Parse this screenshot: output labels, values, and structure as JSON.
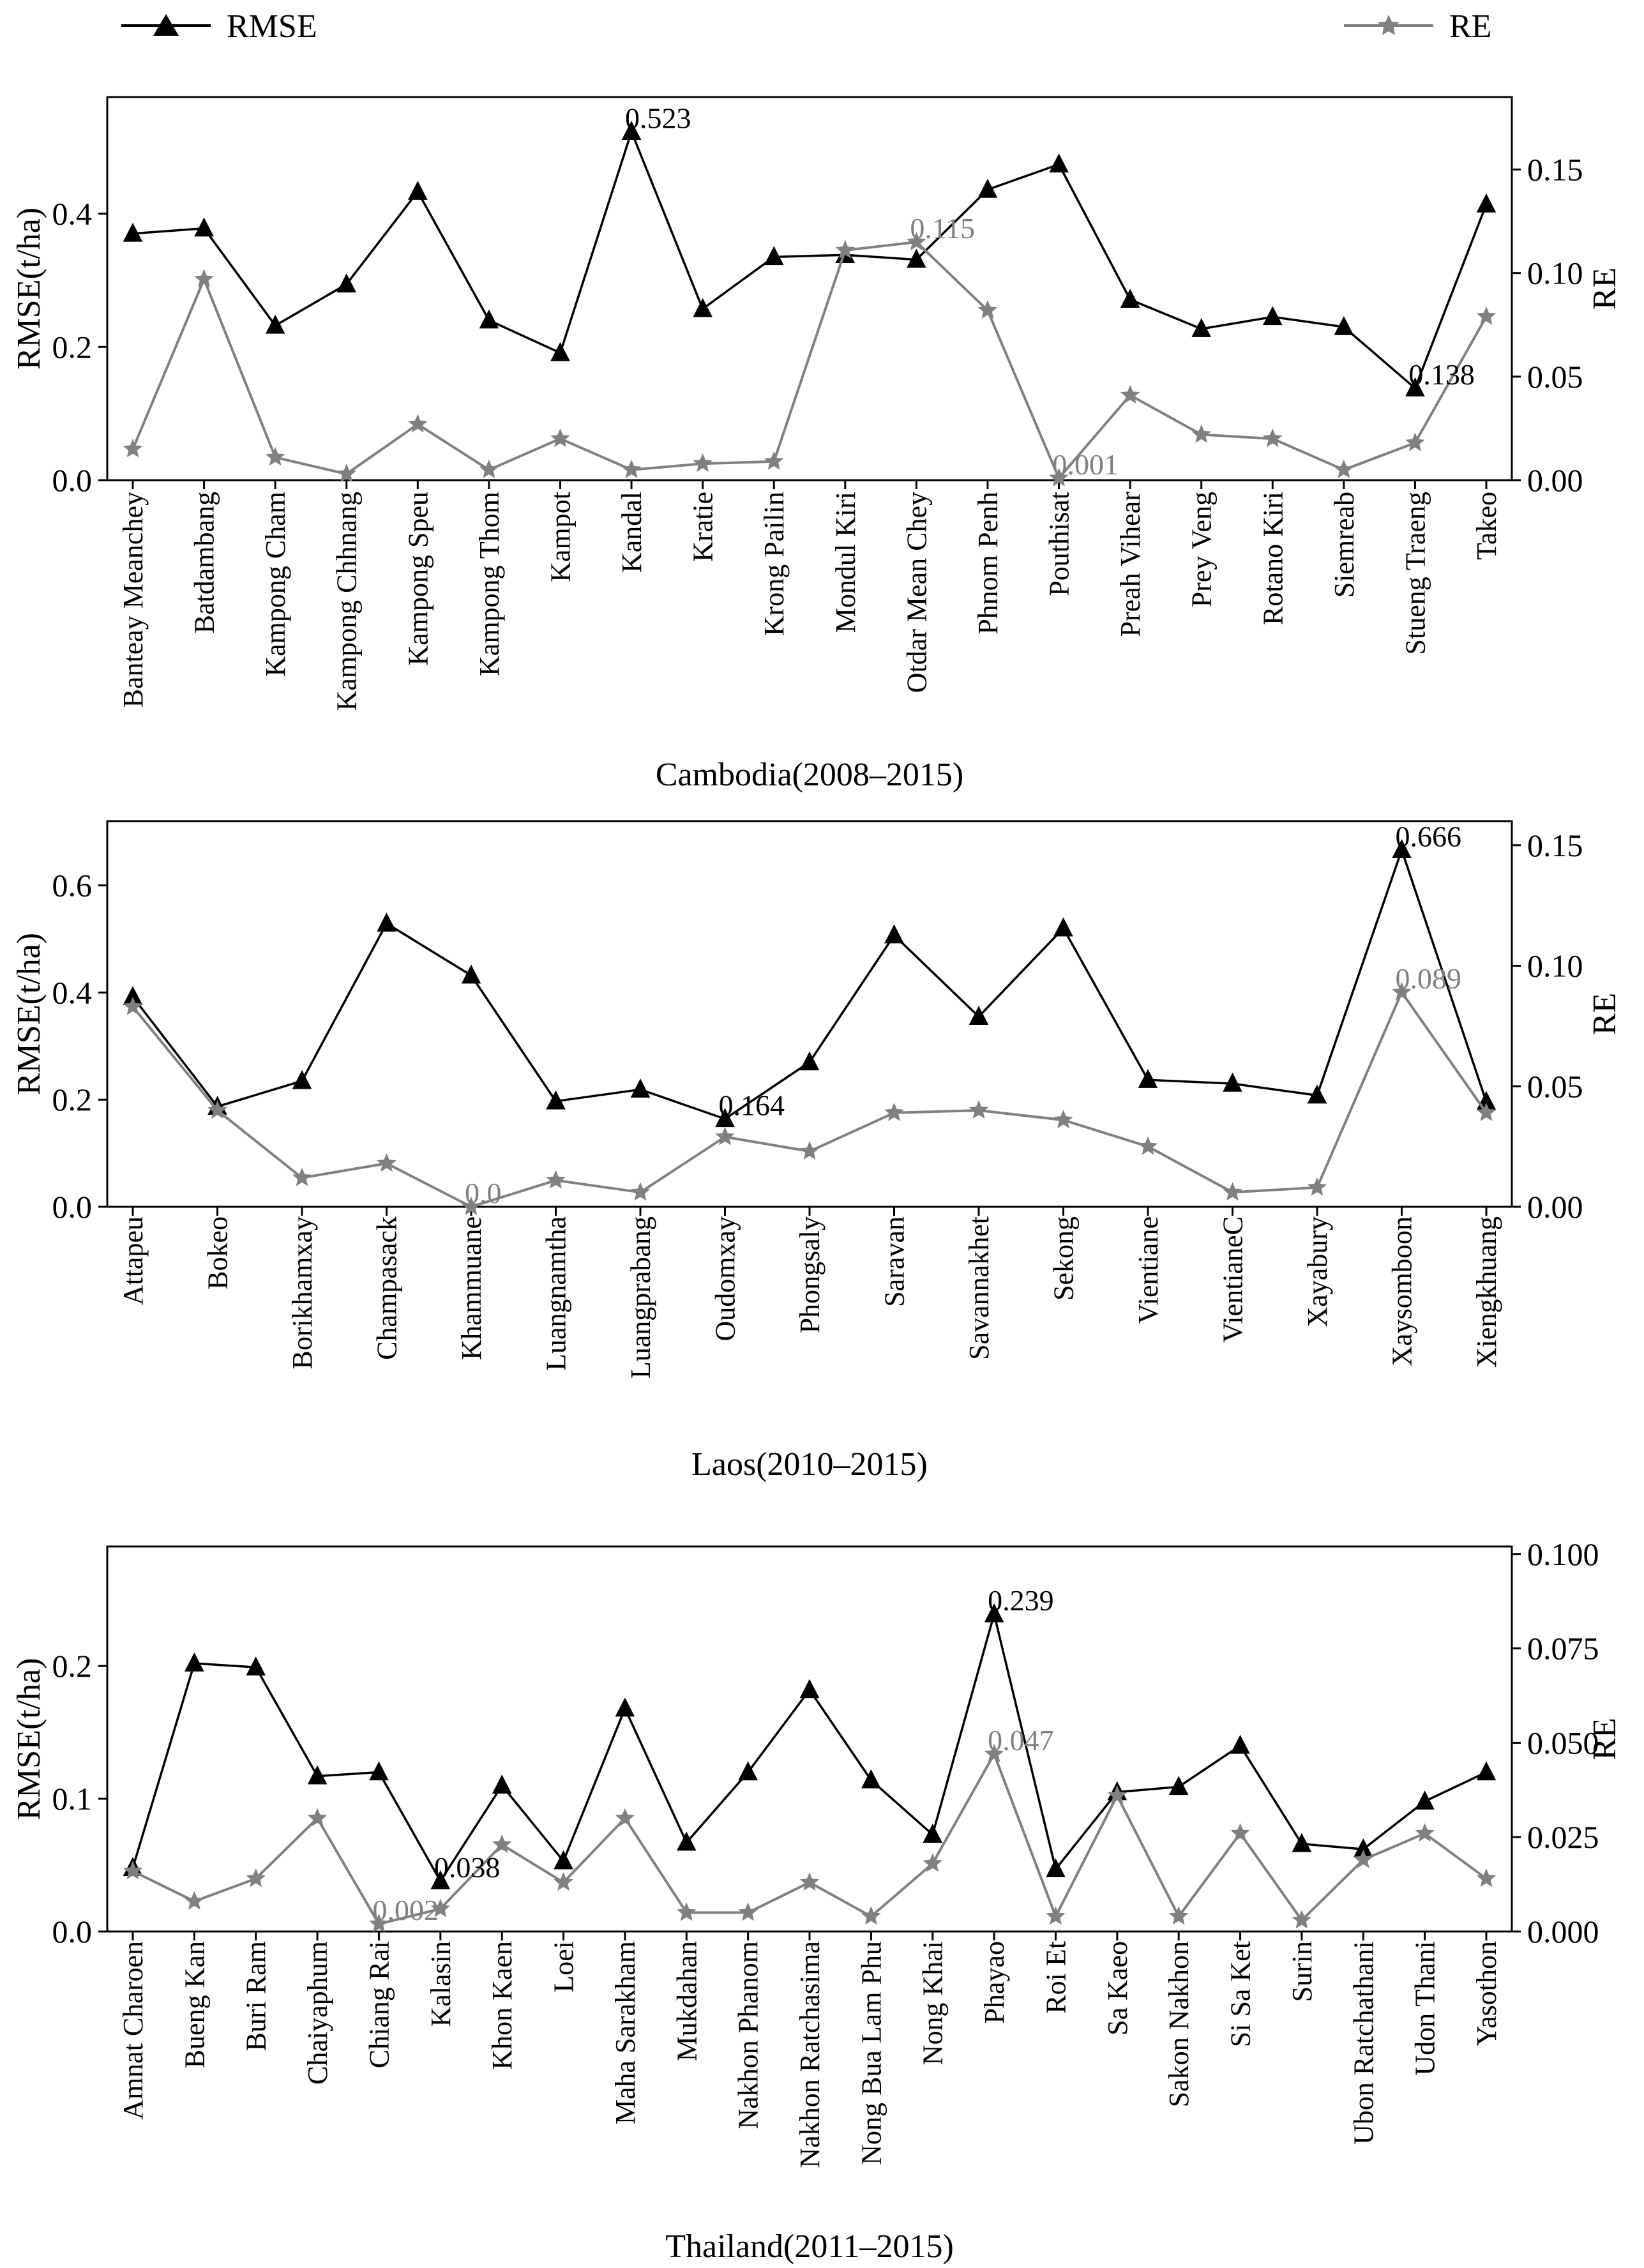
{
  "legend": {
    "rmse_label": "RMSE",
    "re_label": "RE"
  },
  "colors": {
    "rmse": "#000000",
    "re": "#808080",
    "axis": "#000000"
  },
  "chart_data": [
    {
      "type": "line",
      "title": "Cambodia(2008–2015)",
      "ylabel": "RMSE(t/ha)",
      "y2label": "RE",
      "ylim": [
        0,
        0.575
      ],
      "y2lim": [
        0,
        0.185
      ],
      "yticks": [
        "0.0",
        "0.2",
        "0.4"
      ],
      "y2ticks": [
        "0.00",
        "0.05",
        "0.10",
        "0.15"
      ],
      "categories": [
        "Banteay Meanchey",
        "Batdambang",
        "Kampong Cham",
        "Kampong Chhnang",
        "Kampong Speu",
        "Kampong Thom",
        "Kampot",
        "Kandal",
        "Kratie",
        "Krong Pailin",
        "Mondul Kiri",
        "Otdar Mean Chey",
        "Phnom Penh",
        "Pouthisat",
        "Preah Vihear",
        "Prey Veng",
        "Rotano Kiri",
        "Siemreab",
        "Stueng Traeng",
        "Takeo"
      ],
      "series": [
        {
          "name": "RMSE",
          "axis": "left",
          "values": [
            0.37,
            0.378,
            0.232,
            0.294,
            0.433,
            0.24,
            0.191,
            0.523,
            0.257,
            0.335,
            0.338,
            0.331,
            0.436,
            0.474,
            0.271,
            0.227,
            0.245,
            0.23,
            0.138,
            0.414
          ]
        },
        {
          "name": "RE",
          "axis": "right",
          "values": [
            0.015,
            0.097,
            0.011,
            0.003,
            0.027,
            0.005,
            0.02,
            0.005,
            0.008,
            0.009,
            0.111,
            0.115,
            0.082,
            0.001,
            0.041,
            0.022,
            0.02,
            0.005,
            0.018,
            0.079
          ]
        }
      ],
      "annotations": [
        {
          "series": "RMSE",
          "index": 7,
          "text": "0.523"
        },
        {
          "series": "RMSE",
          "index": 18,
          "text": "0.138"
        },
        {
          "series": "RE",
          "index": 11,
          "text": "0.115"
        },
        {
          "series": "RE",
          "index": 13,
          "text": "0.001"
        }
      ]
    },
    {
      "type": "line",
      "title": "Laos(2010–2015)",
      "ylabel": "RMSE(t/ha)",
      "y2label": "RE",
      "ylim": [
        0,
        0.72
      ],
      "y2lim": [
        0,
        0.16
      ],
      "yticks": [
        "0.0",
        "0.2",
        "0.4",
        "0.6"
      ],
      "y2ticks": [
        "0.00",
        "0.05",
        "0.10",
        "0.15"
      ],
      "categories": [
        "Attapeu",
        "Bokeo",
        "Borikhamxay",
        "Champasack",
        "Khammuane",
        "Luangnamtha",
        "Luangprabang",
        "Oudomxay",
        "Phongsaly",
        "Saravan",
        "Savannakhet",
        "Sekong",
        "Vientiane",
        "VientianeC",
        "Xayabury",
        "Xaysomboon",
        "Xiengkhuang"
      ],
      "series": [
        {
          "name": "RMSE",
          "axis": "left",
          "values": [
            0.392,
            0.187,
            0.235,
            0.529,
            0.432,
            0.197,
            0.219,
            0.164,
            0.27,
            0.507,
            0.355,
            0.52,
            0.237,
            0.23,
            0.208,
            0.666,
            0.196
          ]
        },
        {
          "name": "RE",
          "axis": "right",
          "values": [
            0.083,
            0.04,
            0.012,
            0.018,
            0.0,
            0.011,
            0.006,
            0.029,
            0.023,
            0.039,
            0.04,
            0.036,
            0.025,
            0.006,
            0.008,
            0.089,
            0.039
          ]
        }
      ],
      "annotations": [
        {
          "series": "RMSE",
          "index": 15,
          "text": "0.666"
        },
        {
          "series": "RMSE",
          "index": 7,
          "text": "0.164"
        },
        {
          "series": "RE",
          "index": 15,
          "text": "0.089"
        },
        {
          "series": "RE",
          "index": 4,
          "text": "0.0"
        }
      ]
    },
    {
      "type": "line",
      "title": "Thailand(2011–2015)",
      "ylabel": "RMSE(t/ha)",
      "y2label": "RE",
      "ylim": [
        0,
        0.29
      ],
      "y2lim": [
        0,
        0.102
      ],
      "yticks": [
        "0.0",
        "0.1",
        "0.2"
      ],
      "y2ticks": [
        "0.000",
        "0.025",
        "0.050",
        "0.075",
        "0.100"
      ],
      "categories": [
        "Amnat Charoen",
        "Bueng Kan",
        "Buri Ram",
        "Chaiyaphum",
        "Chiang Rai",
        "Kalasin",
        "Khon Kaen",
        "Loei",
        "Maha Sarakham",
        "Mukdahan",
        "Nakhon Phanom",
        "Nakhon Ratchasima",
        "Nong Bua Lam Phu",
        "Nong Khai",
        "Phayao",
        "Roi Et",
        "Sa Kaeo",
        "Sakon Nakhon",
        "Si Sa Ket",
        "Surin",
        "Ubon Ratchathani",
        "Udon Thani",
        "Yasothon"
      ],
      "series": [
        {
          "name": "RMSE",
          "axis": "left",
          "values": [
            0.048,
            0.202,
            0.199,
            0.117,
            0.12,
            0.038,
            0.11,
            0.053,
            0.168,
            0.067,
            0.12,
            0.182,
            0.114,
            0.073,
            0.239,
            0.047,
            0.105,
            0.109,
            0.14,
            0.066,
            0.062,
            0.098,
            0.12
          ]
        },
        {
          "name": "RE",
          "axis": "right",
          "values": [
            0.016,
            0.008,
            0.014,
            0.03,
            0.002,
            0.006,
            0.023,
            0.013,
            0.03,
            0.005,
            0.005,
            0.013,
            0.004,
            0.018,
            0.047,
            0.004,
            0.036,
            0.004,
            0.026,
            0.003,
            0.019,
            0.026,
            0.014
          ]
        }
      ],
      "annotations": [
        {
          "series": "RMSE",
          "index": 14,
          "text": "0.239"
        },
        {
          "series": "RMSE",
          "index": 5,
          "text": "0.038"
        },
        {
          "series": "RE",
          "index": 14,
          "text": "0.047"
        },
        {
          "series": "RE",
          "index": 4,
          "text": "0.002"
        }
      ]
    }
  ]
}
